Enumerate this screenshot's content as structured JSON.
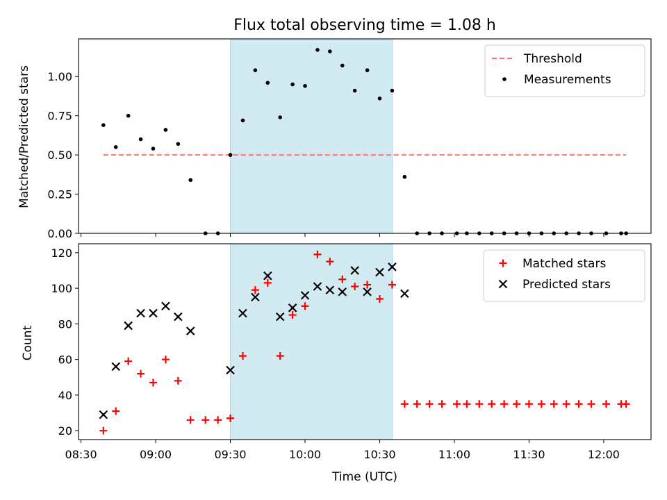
{
  "chart_data": {
    "title": "Flux total observing time = 1.08 h",
    "xlabel": "Time (UTC)",
    "x_tick_labels": [
      "08:30",
      "09:00",
      "09:30",
      "10:00",
      "10:30",
      "11:00",
      "11:30",
      "12:00"
    ],
    "x_ticks": [
      "08:30",
      "09:00",
      "09:30",
      "10:00",
      "10:30",
      "11:00",
      "11:30",
      "12:00"
    ],
    "xlim": [
      "08:29",
      "12:19"
    ],
    "shaded_region": {
      "from": "09:30",
      "to": "10:35",
      "color": "#add8e6"
    },
    "panels": [
      {
        "type": "scatter",
        "ylabel": "Matched/Predicted stars",
        "ylim": [
          0,
          1.24
        ],
        "y_ticks": [
          0.0,
          0.25,
          0.5,
          0.75,
          1.0
        ],
        "y_tick_labels": [
          "0.00",
          "0.25",
          "0.50",
          "0.75",
          "1.00"
        ],
        "legend_position": "top-right",
        "threshold": {
          "name": "Threshold",
          "value": 0.5,
          "x_from": "08:39",
          "x_to": "12:09",
          "color": "#ff7070"
        },
        "series": [
          {
            "name": "Measurements",
            "color": "#000000",
            "marker": "dot",
            "x": [
              "08:39",
              "08:44",
              "08:49",
              "08:54",
              "08:59",
              "09:04",
              "09:09",
              "09:14",
              "09:20",
              "09:25",
              "09:30",
              "09:35",
              "09:40",
              "09:45",
              "09:50",
              "09:55",
              "10:00",
              "10:05",
              "10:10",
              "10:15",
              "10:20",
              "10:25",
              "10:30",
              "10:35",
              "10:40",
              "10:45",
              "10:50",
              "10:55",
              "11:01",
              "11:05",
              "11:10",
              "11:15",
              "11:20",
              "11:25",
              "11:30",
              "11:35",
              "11:40",
              "11:45",
              "11:50",
              "11:55",
              "12:01",
              "12:07",
              "12:09"
            ],
            "y": [
              0.69,
              0.55,
              0.75,
              0.6,
              0.54,
              0.66,
              0.57,
              0.34,
              0.0,
              0.0,
              0.5,
              0.72,
              1.04,
              0.96,
              0.74,
              0.95,
              0.94,
              1.17,
              1.16,
              1.07,
              0.91,
              1.04,
              0.86,
              0.91,
              0.36,
              0.0,
              0.0,
              0.0,
              0.0,
              0.0,
              0.0,
              0.0,
              0.0,
              0.0,
              0.0,
              0.0,
              0.0,
              0.0,
              0.0,
              0.0,
              0.0,
              0.0,
              0.0
            ]
          }
        ]
      },
      {
        "type": "scatter",
        "ylabel": "Count",
        "ylim": [
          15,
          125
        ],
        "y_ticks": [
          20,
          40,
          60,
          80,
          100,
          120
        ],
        "y_tick_labels": [
          "20",
          "40",
          "60",
          "80",
          "100",
          "120"
        ],
        "legend_position": "top-right",
        "series": [
          {
            "name": "Matched stars",
            "color": "#ff0000",
            "marker": "plus",
            "x": [
              "08:39",
              "08:44",
              "08:49",
              "08:54",
              "08:59",
              "09:04",
              "09:09",
              "09:14",
              "09:20",
              "09:25",
              "09:30",
              "09:35",
              "09:40",
              "09:45",
              "09:50",
              "09:55",
              "10:00",
              "10:05",
              "10:10",
              "10:15",
              "10:20",
              "10:25",
              "10:30",
              "10:35",
              "10:40",
              "10:45",
              "10:50",
              "10:55",
              "11:01",
              "11:05",
              "11:10",
              "11:15",
              "11:20",
              "11:25",
              "11:30",
              "11:35",
              "11:40",
              "11:45",
              "11:50",
              "11:55",
              "12:01",
              "12:07",
              "12:09"
            ],
            "y": [
              20,
              31,
              59,
              52,
              47,
              60,
              48,
              26,
              26,
              26,
              27,
              62,
              99,
              103,
              62,
              85,
              90,
              119,
              115,
              105,
              101,
              102,
              94,
              102,
              35,
              35,
              35,
              35,
              35,
              35,
              35,
              35,
              35,
              35,
              35,
              35,
              35,
              35,
              35,
              35,
              35,
              35,
              35
            ]
          },
          {
            "name": "Predicted stars",
            "color": "#000000",
            "marker": "x",
            "x": [
              "08:39",
              "08:44",
              "08:49",
              "08:54",
              "08:59",
              "09:04",
              "09:09",
              "09:14",
              "09:30",
              "09:35",
              "09:40",
              "09:45",
              "09:50",
              "09:55",
              "10:00",
              "10:05",
              "10:10",
              "10:15",
              "10:20",
              "10:25",
              "10:30",
              "10:35",
              "10:40"
            ],
            "y": [
              29,
              56,
              79,
              86,
              86,
              90,
              84,
              76,
              54,
              86,
              95,
              107,
              84,
              89,
              96,
              101,
              99,
              98,
              110,
              98,
              109,
              112,
              97
            ]
          }
        ]
      }
    ]
  }
}
